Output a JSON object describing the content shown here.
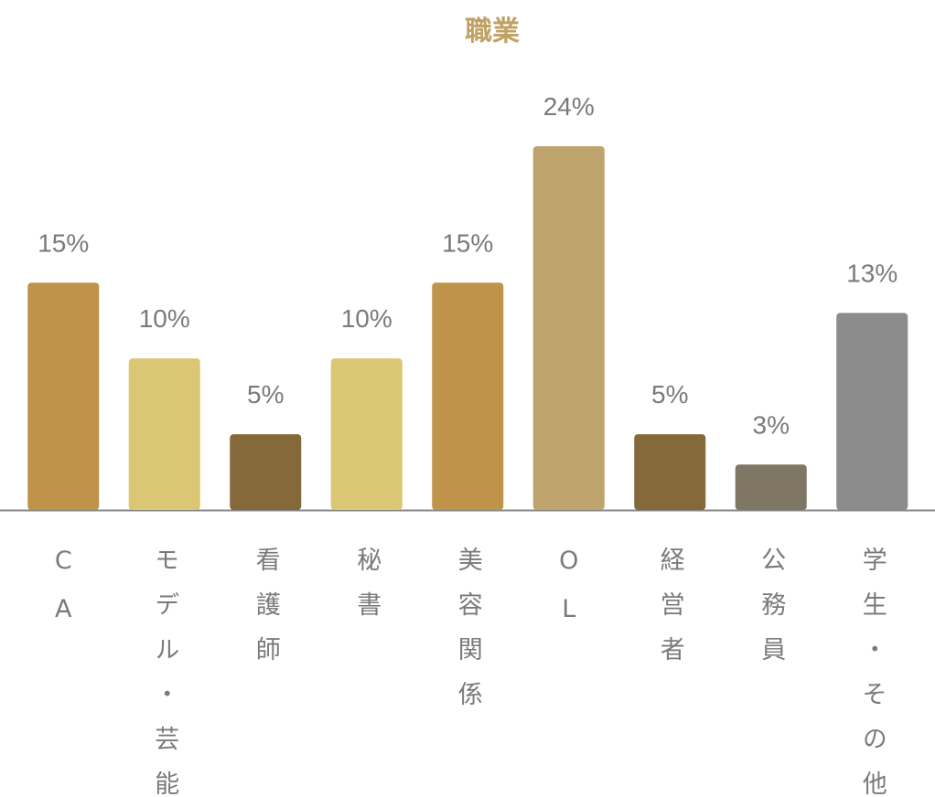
{
  "chart_data": {
    "type": "bar",
    "title": "職業",
    "categories": [
      "CA",
      "モデル・芸能",
      "看護師",
      "秘書",
      "美容関係",
      "OL",
      "経営者",
      "公務員",
      "学生・その他"
    ],
    "values": [
      15,
      10,
      5,
      10,
      15,
      24,
      5,
      3,
      13
    ],
    "value_labels": [
      "15%",
      "10%",
      "5%",
      "10%",
      "15%",
      "24%",
      "5%",
      "3%",
      "13%"
    ],
    "colors": [
      "#c0934a",
      "#dbc673",
      "#86693a",
      "#dbc673",
      "#c0934a",
      "#bea46c",
      "#86693a",
      "#7f7664",
      "#8c8c8c"
    ]
  }
}
